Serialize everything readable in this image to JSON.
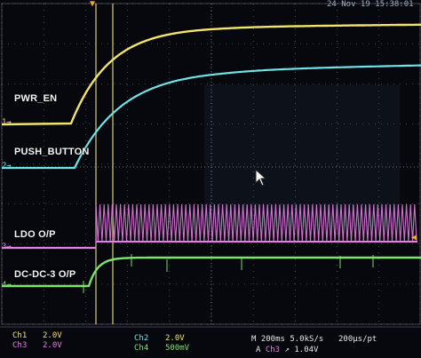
{
  "timestamp": "24 Nov 19 15:38:01",
  "channels": [
    {
      "id": "ch1",
      "label": "PWR_EN",
      "marker": "1",
      "color": "#f2e36c"
    },
    {
      "id": "ch2",
      "label": "PUSH_BUTTON",
      "marker": "2",
      "color": "#6fe3e6"
    },
    {
      "id": "ch3",
      "label": "LDO O/P",
      "marker": "3",
      "color": "#e77de5"
    },
    {
      "id": "ch4",
      "label": "DC-DC-3 O/P",
      "marker": "4",
      "color": "#7ee36a"
    }
  ],
  "status_bar": {
    "ch1_name": "Ch1",
    "ch1_scale": "2.0V",
    "ch3_name": "Ch3",
    "ch3_scale": "2.0V",
    "ch2_name": "Ch2",
    "ch2_scale": "2.0V",
    "ch4_name": "Ch4",
    "ch4_scale": "500mV",
    "timebase": "M 200ms 5.0kS/s",
    "resolution": "200μs/pt",
    "trigger_prefix": "A",
    "trigger_channel": "Ch3",
    "trigger_slope": "↗",
    "trigger_level": "1.04V"
  },
  "colors": {
    "background": "#06080d",
    "grid": "#cfd6e0",
    "cursor": "#f3e08a"
  }
}
